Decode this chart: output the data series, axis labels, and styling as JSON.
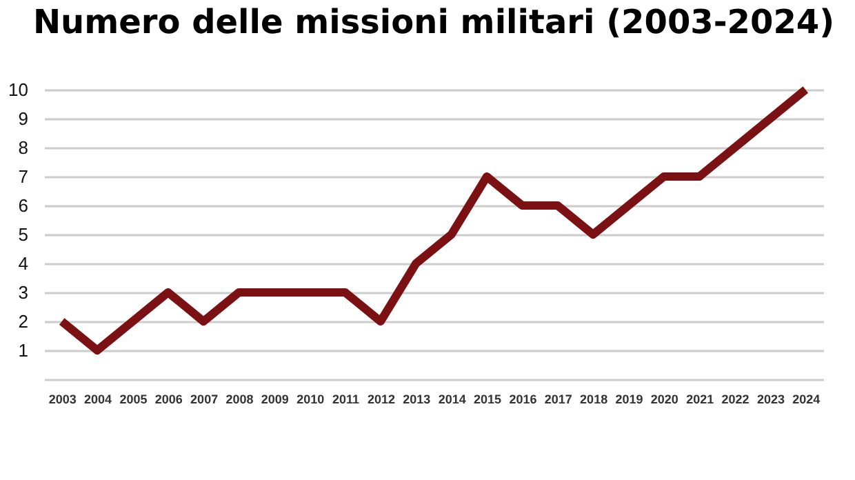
{
  "chart_data": {
    "type": "line",
    "title": "Numero delle missioni militari (2003-2024)",
    "categories": [
      "2003",
      "2004",
      "2005",
      "2006",
      "2007",
      "2008",
      "2009",
      "2010",
      "2011",
      "2012",
      "2013",
      "2014",
      "2015",
      "2016",
      "2017",
      "2018",
      "2019",
      "2020",
      "2021",
      "2022",
      "2023",
      "2024"
    ],
    "series": [
      {
        "color": "#7b1113",
        "values": [
          2,
          1,
          2,
          3,
          2,
          3,
          3,
          3,
          3,
          2,
          4,
          5,
          7,
          6,
          6,
          5,
          6,
          7,
          7,
          8,
          9,
          10
        ]
      }
    ],
    "ylim": [
      0,
      10
    ],
    "yticks": [
      {
        "value": 0,
        "label": null
      },
      1,
      2,
      3,
      4,
      5,
      6,
      7,
      8,
      9,
      10
    ],
    "grid": "y",
    "marker": "none",
    "line_style": "solid"
  }
}
